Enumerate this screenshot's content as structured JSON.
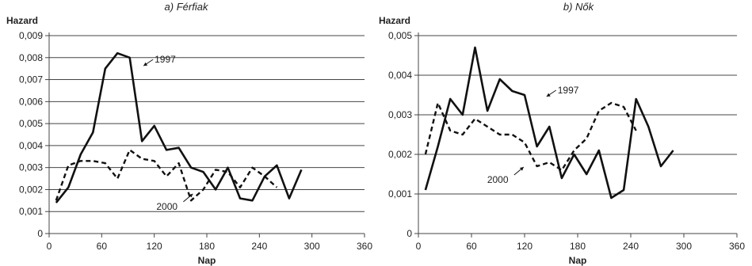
{
  "chart_data": [
    {
      "type": "line",
      "title": "a) Férfiak",
      "ylabel": "Hazard",
      "xlabel": "Nap",
      "xlim": [
        0,
        360
      ],
      "ylim": [
        0,
        0.009
      ],
      "xticks": [
        0,
        60,
        120,
        180,
        240,
        300,
        360
      ],
      "yticks": [
        0,
        0.001,
        0.002,
        0.003,
        0.004,
        0.005,
        0.006,
        0.007,
        0.008,
        0.009
      ],
      "ytick_labels": [
        "0",
        "0,001",
        "0,002",
        "0,003",
        "0,004",
        "0,005",
        "0,006",
        "0,007",
        "0,008",
        "0,009"
      ],
      "grid": "horizontal",
      "series": [
        {
          "name": "1997",
          "style": "solid",
          "x": [
            8,
            22,
            36,
            50,
            64,
            78,
            92,
            106,
            120,
            134,
            148,
            162,
            176,
            190,
            204,
            218,
            232,
            246,
            260,
            274,
            288
          ],
          "y": [
            0.0014,
            0.0021,
            0.0036,
            0.0046,
            0.0075,
            0.0082,
            0.008,
            0.0042,
            0.0049,
            0.0038,
            0.0039,
            0.003,
            0.0028,
            0.002,
            0.003,
            0.0016,
            0.0015,
            0.0026,
            0.0031,
            0.0016,
            0.0029
          ]
        },
        {
          "name": "2000",
          "style": "dashed",
          "x": [
            8,
            22,
            36,
            50,
            64,
            78,
            92,
            106,
            120,
            134,
            148,
            162,
            176,
            190,
            204,
            218,
            232,
            246,
            260
          ],
          "y": [
            0.0015,
            0.0031,
            0.0033,
            0.0033,
            0.0032,
            0.0025,
            0.0038,
            0.0034,
            0.0033,
            0.0026,
            0.0032,
            0.0015,
            0.002,
            0.0029,
            0.0028,
            0.0021,
            0.003,
            0.0026,
            0.0021
          ]
        }
      ],
      "annotations": [
        {
          "text": "1997",
          "x": 115,
          "y": 0.0077
        },
        {
          "text": "2000",
          "x": 155,
          "y": 0.0013
        }
      ]
    },
    {
      "type": "line",
      "title": "b) Nők",
      "ylabel": "Hazard",
      "xlabel": "Nap",
      "xlim": [
        0,
        360
      ],
      "ylim": [
        0,
        0.005
      ],
      "xticks": [
        0,
        60,
        120,
        180,
        240,
        300,
        360
      ],
      "yticks": [
        0,
        0.001,
        0.002,
        0.003,
        0.004,
        0.005
      ],
      "ytick_labels": [
        "0",
        "0,001",
        "0,002",
        "0,003",
        "0,004",
        "0,005"
      ],
      "grid": "horizontal",
      "series": [
        {
          "name": "1997",
          "style": "solid",
          "x": [
            8,
            22,
            36,
            50,
            64,
            78,
            92,
            106,
            120,
            134,
            148,
            162,
            176,
            190,
            204,
            218,
            232,
            246,
            260,
            274,
            288
          ],
          "y": [
            0.0011,
            0.0022,
            0.0034,
            0.003,
            0.0047,
            0.0031,
            0.0039,
            0.0036,
            0.0035,
            0.0022,
            0.0027,
            0.0014,
            0.002,
            0.0015,
            0.0021,
            0.0009,
            0.0011,
            0.0034,
            0.0027,
            0.0017,
            0.0021
          ]
        },
        {
          "name": "2000",
          "style": "dashed",
          "x": [
            8,
            22,
            36,
            50,
            64,
            78,
            92,
            106,
            120,
            134,
            148,
            162,
            176,
            190,
            204,
            218,
            232,
            246
          ],
          "y": [
            0.002,
            0.0033,
            0.0026,
            0.0025,
            0.0029,
            0.0027,
            0.0025,
            0.0025,
            0.0023,
            0.0017,
            0.0018,
            0.0016,
            0.0021,
            0.0024,
            0.0031,
            0.0033,
            0.0032,
            0.0026
          ]
        }
      ],
      "annotations": [
        {
          "text": "1997",
          "x": 152,
          "y": 0.0035
        },
        {
          "text": "2000",
          "x": 110,
          "y": 0.0014
        }
      ]
    }
  ]
}
